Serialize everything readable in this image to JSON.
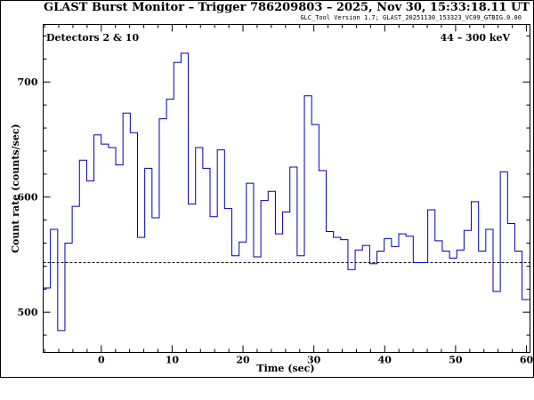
{
  "chart_data": {
    "type": "line",
    "title": "GLAST Burst Monitor  –  Trigger 786209803  –  2025, Nov 30, 15:33:18.11 UT",
    "subtitle": "GLC_Tool Version 1.7; GLAST_20251130_153323_VC09_GTBIG.0.00",
    "annotation_left": "Detectors 2 & 10",
    "annotation_right": "44 – 300 keV",
    "xlabel": "Time (sec)",
    "ylabel": "Count rate (counts/sec)",
    "xlim": [
      -8.2,
      60.5
    ],
    "ylim": [
      465,
      750
    ],
    "xticks_major": [
      0,
      10,
      20,
      30,
      40,
      50,
      60
    ],
    "yticks_major": [
      500,
      600,
      700
    ],
    "background_level": 543,
    "grid": false,
    "line_color": "#0000bb",
    "series": [
      {
        "step_width": 1.024,
        "x_start": -8.2,
        "values": [
          521,
          572,
          484,
          560,
          592,
          632,
          614,
          654,
          646,
          643,
          628,
          673,
          656,
          565,
          625,
          582,
          668,
          685,
          717,
          725,
          594,
          643,
          625,
          583,
          641,
          590,
          549,
          561,
          612,
          548,
          597,
          605,
          568,
          587,
          626,
          549,
          688,
          663,
          623,
          570,
          565,
          563,
          537,
          554,
          558,
          542,
          553,
          564,
          557,
          568,
          566,
          543,
          543,
          589,
          562,
          553,
          547,
          554,
          571,
          596,
          553,
          572,
          518,
          622,
          577,
          553,
          511
        ]
      }
    ]
  }
}
